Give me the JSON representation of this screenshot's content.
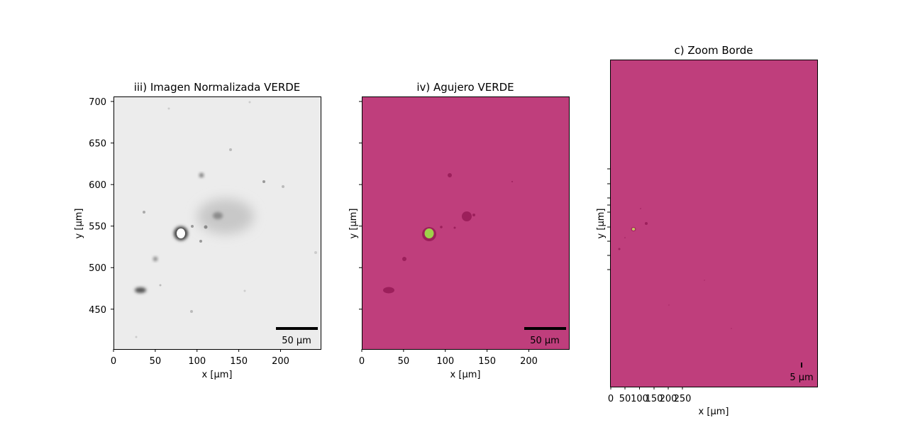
{
  "colors": {
    "background_hole_panel": "#bf3e7c",
    "hole_fill": "#9ed14a",
    "dark_spots": "#9c1f5b",
    "gray_field": "#ececec"
  },
  "chart_data": [
    {
      "type": "heatmap",
      "title": "iii) Imagen Normalizada VERDE",
      "xlabel": "x [µm]",
      "ylabel": "y [µm]",
      "xlim": [
        0,
        248
      ],
      "ylim": [
        402,
        706
      ],
      "xticks": [
        0,
        50,
        100,
        150,
        200
      ],
      "yticks": [
        450,
        500,
        550,
        600,
        650,
        700
      ],
      "xtick_labels": [
        "0",
        "50",
        "100",
        "150",
        "200"
      ],
      "ytick_labels": [
        "450",
        "500",
        "550",
        "600",
        "650",
        "700"
      ],
      "scalebar_label": "50 µm",
      "colormap": "gray"
    },
    {
      "type": "heatmap",
      "title": "iv) Agujero VERDE",
      "xlabel": "x [µm]",
      "ylabel": "y [µm]",
      "xlim": [
        0,
        248
      ],
      "ylim": [
        402,
        706
      ],
      "xticks": [
        0,
        50,
        100,
        150,
        200
      ],
      "yticks": [
        450,
        500,
        550,
        600,
        650,
        700
      ],
      "xtick_labels": [
        "0",
        "50",
        "100",
        "150",
        "200"
      ],
      "ytick_labels": [],
      "scalebar_label": "50 µm"
    },
    {
      "type": "heatmap",
      "title": "c) Zoom Borde",
      "xlabel": "x [µm]",
      "ylabel": "y [µm]",
      "xticks": [
        0,
        50,
        100,
        150,
        200,
        250
      ],
      "xtick_labels": [
        "0",
        "50",
        "100",
        "150",
        "200",
        "250"
      ],
      "ytick_labels": [],
      "scalebar_label": "5 µm"
    }
  ]
}
